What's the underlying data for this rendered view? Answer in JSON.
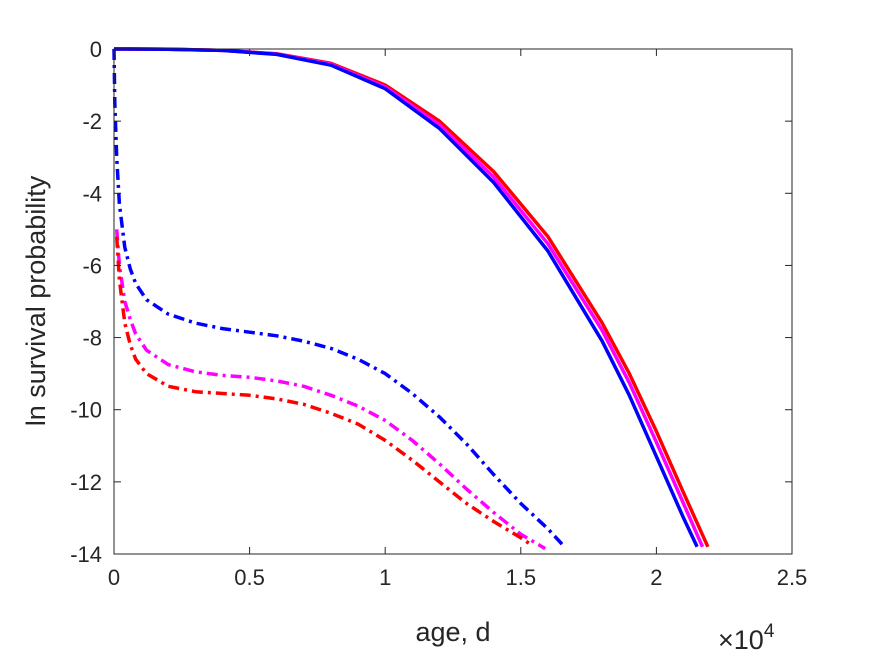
{
  "chart_data": {
    "type": "line",
    "xlabel": "age, d",
    "ylabel": "ln survival probability",
    "x_exponent_base": "×10",
    "x_exponent_power": "4",
    "xlim": [
      0,
      25000
    ],
    "ylim": [
      -14,
      0
    ],
    "xticks": [
      0,
      5000,
      10000,
      15000,
      20000,
      25000
    ],
    "xtick_labels": [
      "0",
      "0.5",
      "1",
      "1.5",
      "2",
      "2.5"
    ],
    "yticks": [
      0,
      -2,
      -4,
      -6,
      -8,
      -10,
      -12,
      -14
    ],
    "ytick_labels": [
      "0",
      "-2",
      "-4",
      "-6",
      "-8",
      "-10",
      "-12",
      "-14"
    ],
    "grid": false,
    "box": true,
    "series": [
      {
        "style": "solid",
        "color": "#ff0000",
        "x": [
          0,
          2000,
          4000,
          6000,
          8000,
          10000,
          12000,
          14000,
          16000,
          18000,
          19000,
          20000,
          21000,
          21900
        ],
        "y": [
          0,
          -0.005,
          -0.04,
          -0.13,
          -0.4,
          -1.0,
          -2.0,
          -3.4,
          -5.2,
          -7.6,
          -9.0,
          -10.6,
          -12.3,
          -13.8
        ]
      },
      {
        "style": "solid",
        "color": "#ff00ff",
        "x": [
          0,
          2000,
          4000,
          6000,
          8000,
          10000,
          12000,
          14000,
          16000,
          18000,
          19000,
          20000,
          21000,
          21700
        ],
        "y": [
          0,
          -0.005,
          -0.04,
          -0.14,
          -0.42,
          -1.05,
          -2.1,
          -3.55,
          -5.4,
          -7.8,
          -9.25,
          -10.9,
          -12.6,
          -13.8
        ]
      },
      {
        "style": "solid",
        "color": "#0000ff",
        "x": [
          0,
          2000,
          4000,
          6000,
          8000,
          10000,
          12000,
          14000,
          16000,
          18000,
          19000,
          20000,
          21000,
          21500
        ],
        "y": [
          0,
          -0.005,
          -0.04,
          -0.15,
          -0.45,
          -1.1,
          -2.2,
          -3.7,
          -5.6,
          -8.1,
          -9.6,
          -11.3,
          -13.0,
          -13.8
        ]
      },
      {
        "style": "dashdot",
        "color": "#0000ff",
        "x": [
          0,
          30,
          100,
          200,
          400,
          600,
          800,
          1200,
          2000,
          3000,
          4000,
          5000,
          6000,
          7000,
          8000,
          9000,
          10000,
          11000,
          12000,
          13000,
          14000,
          15000,
          16000,
          16550
        ],
        "y": [
          0,
          -1.5,
          -3.0,
          -4.3,
          -5.5,
          -6.1,
          -6.5,
          -6.95,
          -7.35,
          -7.6,
          -7.75,
          -7.85,
          -7.95,
          -8.1,
          -8.3,
          -8.6,
          -9.0,
          -9.55,
          -10.2,
          -10.95,
          -11.8,
          -12.6,
          -13.3,
          -13.75
        ]
      },
      {
        "style": "dashdot",
        "color": "#ff00ff",
        "x": [
          100,
          200,
          400,
          600,
          800,
          1200,
          2000,
          3000,
          4000,
          5000,
          6000,
          7000,
          8000,
          9000,
          10000,
          11000,
          12000,
          13000,
          14000,
          15000,
          15900
        ],
        "y": [
          -5.0,
          -6.0,
          -7.0,
          -7.5,
          -7.9,
          -8.35,
          -8.75,
          -8.95,
          -9.05,
          -9.1,
          -9.2,
          -9.35,
          -9.6,
          -9.9,
          -10.3,
          -10.85,
          -11.5,
          -12.2,
          -12.85,
          -13.45,
          -13.85
        ]
      },
      {
        "style": "dashdot",
        "color": "#ff0000",
        "x": [
          100,
          200,
          400,
          600,
          800,
          1200,
          2000,
          3000,
          4000,
          5000,
          6000,
          7000,
          8000,
          9000,
          10000,
          11000,
          12000,
          13000,
          14000,
          15000,
          15400
        ],
        "y": [
          -5.2,
          -6.4,
          -7.6,
          -8.2,
          -8.6,
          -9.0,
          -9.35,
          -9.5,
          -9.55,
          -9.6,
          -9.7,
          -9.85,
          -10.1,
          -10.4,
          -10.85,
          -11.4,
          -12.0,
          -12.6,
          -13.1,
          -13.55,
          -13.75
        ]
      }
    ]
  }
}
